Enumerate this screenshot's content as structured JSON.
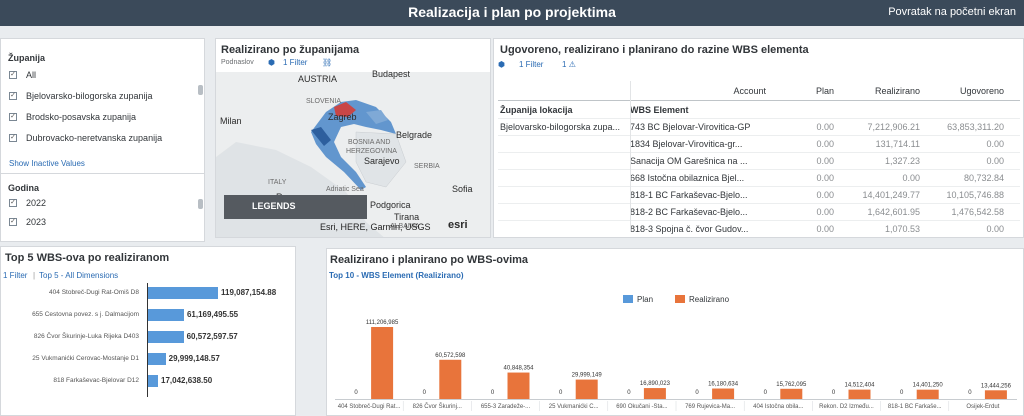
{
  "header": {
    "title": "Realizacija i plan po projektima",
    "nav_link": "Povratak na početni ekran"
  },
  "filters": {
    "county_title": "Županija",
    "county_items": [
      {
        "label": "All",
        "checked": true
      },
      {
        "label": "Bjelovarsko-bilogorska zupanija",
        "checked": true
      },
      {
        "label": "Brodsko-posavska zupanija",
        "checked": true
      },
      {
        "label": "Dubrovacko-neretvanska zupanija",
        "checked": true
      }
    ],
    "show_inactive": "Show Inactive Values",
    "year_title": "Godina",
    "year_items": [
      {
        "label": "2022",
        "checked": true
      },
      {
        "label": "2023",
        "checked": true
      }
    ]
  },
  "map_panel": {
    "title": "Realizirano po županijama",
    "subtitle": "Podnaslov",
    "filter_link": "1 Filter",
    "labels": [
      "AUSTRIA",
      "Budapest",
      "SLOVENIA",
      "Zagreb",
      "Milan",
      "Belgrade",
      "BOSNIA AND",
      "HERZEGOVINA",
      "Sarajevo",
      "ITALY",
      "SERBIA",
      "Sofia",
      "Rome",
      "Podgorica",
      "Adriatic Sea",
      "Tirana",
      "ALBANIA"
    ],
    "legend_button": "LEGENDS",
    "attribution": "Esri, HERE, Garmin, USGS",
    "esri": "esri"
  },
  "table_panel": {
    "title": "Ugovoreno, realizirano i planirano do razine WBS elementa",
    "filter_link": "1 Filter",
    "warning_count": "1",
    "headers": {
      "account": "Account",
      "plan": "Plan",
      "realizirano": "Realizirano",
      "ugovoreno": "Ugovoreno"
    },
    "dim_headers": {
      "county": "Županija lokacija",
      "wbs": "WBS Element"
    },
    "county_value": "Bjelovarsko-bilogorska zupa...",
    "rows": [
      {
        "wbs": "743 BC Bjelovar-Virovitica-GP",
        "plan": "0.00",
        "real": "7,212,906.21",
        "ugov": "63,853,311.20"
      },
      {
        "wbs": "1834 Bjelovar-Virovitica-gr...",
        "plan": "0.00",
        "real": "131,714.11",
        "ugov": "0.00"
      },
      {
        "wbs": "Sanacija OM Garešnica na ...",
        "plan": "0.00",
        "real": "1,327.23",
        "ugov": "0.00"
      },
      {
        "wbs": "668 Istočna obilaznica Bjel...",
        "plan": "0.00",
        "real": "0.00",
        "ugov": "80,732.84"
      },
      {
        "wbs": "818-1 BC Farkaševac-Bjelo...",
        "plan": "0.00",
        "real": "14,401,249.77",
        "ugov": "10,105,746.88"
      },
      {
        "wbs": "818-2 BC Farkaševac-Bjelo...",
        "plan": "0.00",
        "real": "1,642,601.95",
        "ugov": "1,476,542.58"
      },
      {
        "wbs": "818-3 Spojna č. čvor Gudov...",
        "plan": "0.00",
        "real": "1,070.53",
        "ugov": "0.00"
      }
    ]
  },
  "top5_panel": {
    "title": "Top 5 WBS-ova po realiziranom",
    "filter_link": "1 Filter",
    "dims_link": "Top 5 - All Dimensions",
    "chart_data": {
      "type": "bar",
      "orientation": "horizontal",
      "categories": [
        "404 Stobreč-Dugi Rat-Omiš D8",
        "655 Cestovna povez. s j. Dalmacijom",
        "826 Čvor Škurinje-Luka Rijeka D403",
        "25 Vukmanićki Cerovac-Mostanje D1",
        "818 Farkaševac-Bjelovar D12"
      ],
      "values": [
        119087154.88,
        61169495.55,
        60572597.57,
        29999148.57,
        17042638.5
      ],
      "labels": [
        "119,087,154.88",
        "61,169,495.55",
        "60,572,597.57",
        "29,999,148.57",
        "17,042,638.50"
      ],
      "color": "#5899da"
    }
  },
  "wbs_chart_panel": {
    "title": "Realizirano i planirano po WBS-ovima",
    "subtitle": "Top 10 - WBS Element (Realizirano)",
    "chart_data": {
      "type": "bar",
      "categories": [
        "404 Stobreč-Dugi Rat...",
        "826 Čvor Škurinj...",
        "655-3 Zaradeže-...",
        "25 Vukmanićki C...",
        "690 Okučani -Sta...",
        "769 Rujevica-Ma...",
        "404 Istočna obila...",
        "Rekon. D2 Između...",
        "818-1 BC Farkaše...",
        "Osijek-Erdut"
      ],
      "series": [
        {
          "name": "Plan",
          "color": "#5899da",
          "values": [
            0,
            0,
            0,
            0,
            0,
            0,
            0,
            0,
            0,
            0
          ],
          "labels": [
            "0",
            "0",
            "0",
            "0",
            "0",
            "0",
            "0",
            "0",
            "0",
            "0"
          ]
        },
        {
          "name": "Realizirano",
          "color": "#e8743b",
          "values": [
            111206985,
            60572598,
            40848354,
            29999149,
            16890023,
            16180634,
            15762095,
            14512404,
            14401250,
            13444256
          ],
          "labels": [
            "111,206,985",
            "60,572,598",
            "40,848,354",
            "29,999,149",
            "16,890,023",
            "16,180,634",
            "15,762,095",
            "14,512,404",
            "14,401,250",
            "13,444,256"
          ]
        }
      ],
      "legend_position": "top"
    }
  }
}
